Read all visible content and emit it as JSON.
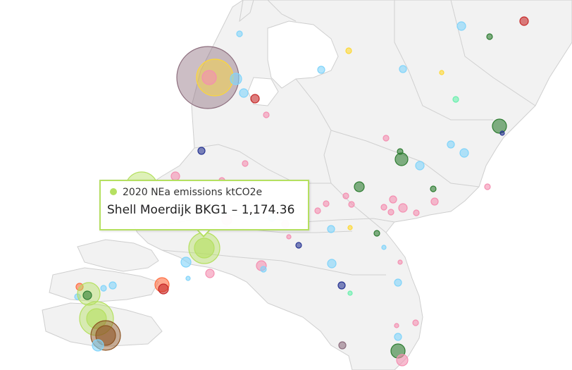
{
  "tooltip": {
    "series_name": "2020 NEa emissions ktCO2e",
    "point_name": "Shell Moerdijk BKG1",
    "separator": " – ",
    "value": "1,174.36"
  },
  "colors": {
    "land": "#f2f2f2",
    "border": "#cfcfcf",
    "highlight": "#b5e061",
    "pink": "#f48fb1",
    "light_blue": "#81d4fa",
    "dark_green": "#2e7d32",
    "dark_blue": "#283593",
    "yellow": "#fdd835",
    "mint": "#69f0ae",
    "orange": "#ff7043",
    "brown": "#8d5524",
    "red": "#c62828",
    "mauve": "#8d6e7e"
  }
}
